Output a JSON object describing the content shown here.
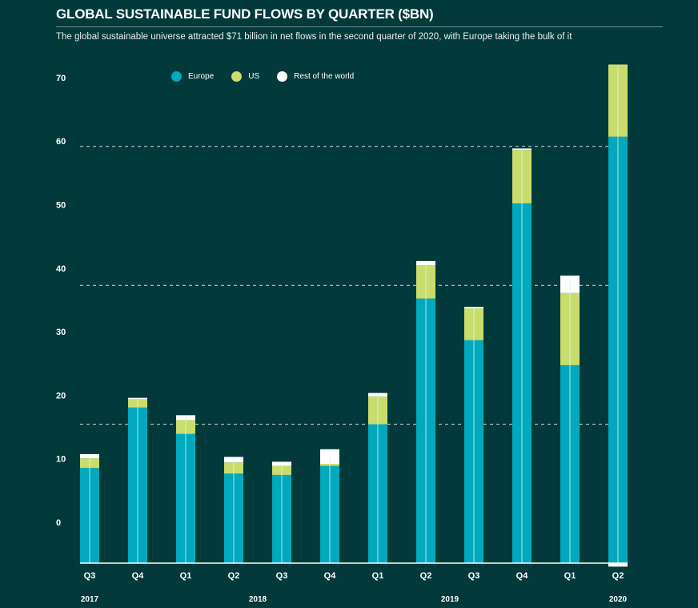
{
  "header": {
    "title": "GLOBAL SUSTAINABLE FUND FLOWS BY QUARTER ($BN)",
    "subtitle": "The global sustainable universe attracted $71 billion in net flows in the second quarter of 2020, with Europe taking the bulk of it"
  },
  "colors": {
    "background": "#02393a",
    "Europe": "#00a9bd",
    "US": "#c9dd6c",
    "Rest of the world": "#ffffff"
  },
  "chart_data": {
    "type": "bar",
    "stacked": true,
    "title": "GLOBAL SUSTAINABLE FUND FLOWS BY QUARTER ($BN)",
    "xlabel": "",
    "ylabel": "",
    "ylim": [
      0,
      72
    ],
    "y_ticks": [
      "0",
      "10",
      "20",
      "30",
      "40",
      "50",
      "60",
      "70"
    ],
    "gridlines": [
      20,
      40,
      60
    ],
    "legend_position": "top-left",
    "categories": [
      "Q3",
      "Q4",
      "Q1",
      "Q2",
      "Q3",
      "Q4",
      "Q1",
      "Q2",
      "Q3",
      "Q4",
      "Q1",
      "Q2"
    ],
    "years": [
      {
        "label": "2017",
        "index": 0
      },
      {
        "label": "2018",
        "index": 3.5
      },
      {
        "label": "2019",
        "index": 7.5
      },
      {
        "label": "2020",
        "index": 11
      }
    ],
    "series": [
      {
        "name": "Europe",
        "values": [
          13.7,
          22.4,
          18.6,
          12.9,
          12.7,
          14.0,
          20.0,
          38.1,
          32.1,
          51.8,
          28.5,
          61.4
        ]
      },
      {
        "name": "US",
        "values": [
          1.4,
          1.2,
          2.0,
          1.6,
          1.3,
          0.3,
          4.0,
          4.8,
          4.6,
          7.7,
          10.4,
          10.4
        ]
      },
      {
        "name": "Rest of the world",
        "values": [
          0.6,
          0.2,
          0.7,
          0.8,
          0.6,
          2.1,
          0.5,
          0.6,
          0.2,
          0.2,
          2.5,
          -0.5
        ]
      }
    ]
  }
}
